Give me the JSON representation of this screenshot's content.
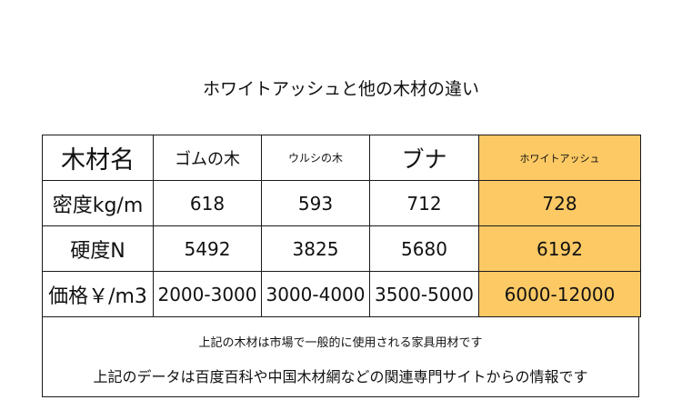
{
  "title": "ホワイトアッシュと他の木材の違い",
  "table": {
    "header": [
      "木材名",
      "ゴムの木",
      "ウルシの木",
      "ブナ",
      "ホワイトアッシュ"
    ],
    "rows": [
      {
        "label": "密度kg/m",
        "values": [
          "618",
          "593",
          "712",
          "728"
        ]
      },
      {
        "label": "硬度N",
        "values": [
          "5492",
          "3825",
          "5680",
          "6192"
        ]
      },
      {
        "label": "価格￥/m3",
        "values": [
          "2000-3000",
          "3000-4000",
          "3500-5000",
          "6000-12000"
        ]
      }
    ],
    "highlight_color": "#fcc964"
  },
  "notes": {
    "line1": "上記の木材は市場で一般的に使用される家具用材です",
    "line2": "上記のデータは百度百科や中国木材網などの関連専門サイトからの情報です"
  }
}
